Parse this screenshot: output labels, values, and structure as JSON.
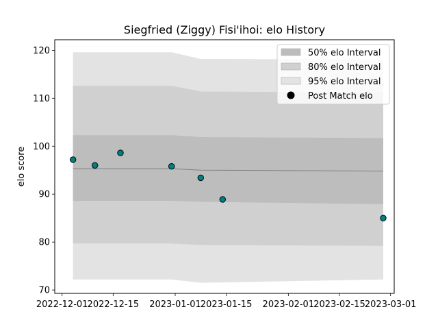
{
  "chart_data": {
    "type": "area",
    "title": "Siegfried (Ziggy) Fisi'ihoi: elo History",
    "xlabel": "",
    "ylabel": "elo score",
    "x_date_range": [
      "2022-11-29",
      "2023-03-02"
    ],
    "ylim": [
      69.3,
      122.2
    ],
    "x_ticks": [
      "2022-12-01",
      "2022-12-15",
      "2023-01-01",
      "2023-01-15",
      "2023-02-01",
      "2023-02-15",
      "2023-03-01"
    ],
    "y_ticks": [
      70,
      80,
      90,
      100,
      110,
      120
    ],
    "grid": false,
    "legend_position": "top-right",
    "colors": {
      "band_95": "#e3e3e3",
      "band_80": "#d0d0d0",
      "band_50": "#bdbdbd",
      "mean_line": "#7f7f7f",
      "marker_fill": "#008080",
      "marker_edge": "#000000"
    },
    "legend": [
      {
        "label": "50% elo Interval",
        "kind": "band_50"
      },
      {
        "label": "80% elo Interval",
        "kind": "band_80"
      },
      {
        "label": "95% elo Interval",
        "kind": "band_95"
      },
      {
        "label": "Post Match elo",
        "kind": "marker"
      }
    ],
    "bands": {
      "dates": [
        "2022-12-04",
        "2022-12-31",
        "2023-01-08",
        "2023-02-27"
      ],
      "mean": [
        95.3,
        95.3,
        95.0,
        94.8
      ],
      "band_50": {
        "lower": [
          88.6,
          88.6,
          88.4,
          87.9
        ],
        "upper": [
          102.3,
          102.3,
          101.9,
          101.7
        ]
      },
      "band_80": {
        "lower": [
          79.7,
          79.7,
          79.4,
          79.2
        ],
        "upper": [
          112.6,
          112.6,
          111.4,
          111.2
        ]
      },
      "band_95": {
        "lower": [
          72.2,
          72.2,
          71.5,
          72.2
        ],
        "upper": [
          119.6,
          119.6,
          118.2,
          118.1
        ]
      }
    },
    "points": [
      {
        "date": "2022-12-04",
        "elo": 97.2
      },
      {
        "date": "2022-12-10",
        "elo": 96.0
      },
      {
        "date": "2022-12-17",
        "elo": 98.6
      },
      {
        "date": "2022-12-31",
        "elo": 95.8
      },
      {
        "date": "2023-01-08",
        "elo": 93.4
      },
      {
        "date": "2023-01-14",
        "elo": 88.9
      },
      {
        "date": "2023-02-27",
        "elo": 85.0
      }
    ]
  }
}
